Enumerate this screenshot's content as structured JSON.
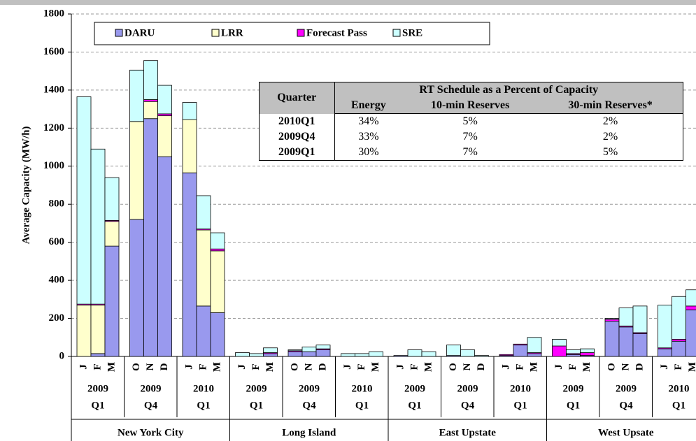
{
  "chart_data": {
    "type": "stacked-bar",
    "y_label": "Average Capacity (MW/h)",
    "ylim": [
      0,
      1800
    ],
    "yticks": [
      0,
      200,
      400,
      600,
      800,
      1000,
      1200,
      1400,
      1600,
      1800
    ],
    "grid": true,
    "legend_position": "top",
    "categories": [
      "J",
      "F",
      "M",
      "O",
      "N",
      "D",
      "J",
      "F",
      "M",
      "J",
      "F",
      "M",
      "O",
      "N",
      "D",
      "J",
      "F",
      "M",
      "J",
      "F",
      "M",
      "O",
      "N",
      "D",
      "J",
      "F",
      "M",
      "J",
      "F",
      "M",
      "O",
      "N",
      "D",
      "J",
      "F",
      "M"
    ],
    "groups": [
      {
        "year": "2009",
        "quarter": "Q1"
      },
      {
        "year": "2009",
        "quarter": "Q4"
      },
      {
        "year": "2010",
        "quarter": "Q1"
      },
      {
        "year": "2009",
        "quarter": "Q1"
      },
      {
        "year": "2009",
        "quarter": "Q4"
      },
      {
        "year": "2010",
        "quarter": "Q1"
      },
      {
        "year": "2009",
        "quarter": "Q1"
      },
      {
        "year": "2009",
        "quarter": "Q4"
      },
      {
        "year": "2010",
        "quarter": "Q1"
      },
      {
        "year": "2009",
        "quarter": "Q1"
      },
      {
        "year": "2009",
        "quarter": "Q4"
      },
      {
        "year": "2010",
        "quarter": "Q1"
      }
    ],
    "regions": [
      "New York City",
      "Long Island",
      "East Upstate",
      "West Upsate"
    ],
    "series": [
      {
        "name": "DARU",
        "color": "#9999ee",
        "values": [
          0,
          15,
          580,
          720,
          1250,
          1050,
          965,
          265,
          230,
          0,
          0,
          15,
          25,
          25,
          35,
          0,
          0,
          0,
          5,
          0,
          0,
          5,
          0,
          0,
          5,
          60,
          15,
          0,
          10,
          5,
          185,
          155,
          120,
          40,
          80,
          245
        ]
      },
      {
        "name": "LRR",
        "color": "#ffffcc",
        "values": [
          270,
          255,
          130,
          515,
          90,
          215,
          280,
          400,
          325,
          0,
          0,
          0,
          0,
          0,
          0,
          0,
          0,
          0,
          0,
          0,
          0,
          0,
          0,
          0,
          0,
          0,
          0,
          0,
          0,
          0,
          0,
          0,
          0,
          0,
          0,
          0
        ]
      },
      {
        "name": "Forecast Pass",
        "color": "#ff00ff",
        "values": [
          5,
          5,
          5,
          0,
          10,
          10,
          0,
          5,
          10,
          0,
          0,
          5,
          5,
          0,
          5,
          0,
          0,
          0,
          0,
          0,
          0,
          0,
          0,
          0,
          5,
          5,
          5,
          55,
          5,
          15,
          10,
          5,
          5,
          5,
          10,
          20
        ]
      },
      {
        "name": "SRE",
        "color": "#ccffff",
        "values": [
          1090,
          815,
          225,
          270,
          205,
          150,
          90,
          175,
          85,
          20,
          15,
          25,
          5,
          25,
          20,
          15,
          15,
          25,
          0,
          35,
          25,
          55,
          35,
          5,
          0,
          0,
          80,
          35,
          20,
          20,
          5,
          95,
          140,
          225,
          225,
          85
        ]
      }
    ],
    "table": {
      "quarter_header": "Quarter",
      "group_header": "RT Schedule as a Percent of Capacity",
      "columns": [
        "Energy",
        "10-min Reserves",
        "30-min Reserves*"
      ],
      "rows": [
        [
          "2010Q1",
          "34%",
          "5%",
          "2%"
        ],
        [
          "2009Q4",
          "33%",
          "7%",
          "2%"
        ],
        [
          "2009Q1",
          "30%",
          "7%",
          "5%"
        ]
      ]
    }
  }
}
